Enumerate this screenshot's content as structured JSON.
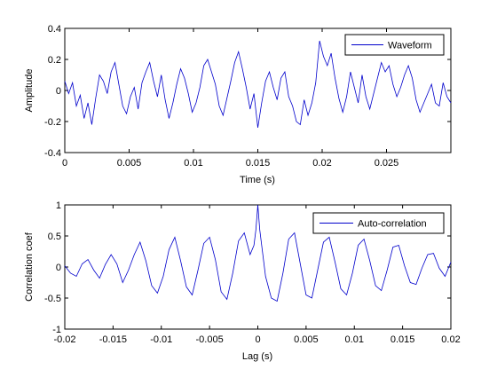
{
  "colors": {
    "line": "#0000cc",
    "axis": "#000000",
    "background": "#ffffff"
  },
  "chart_data": [
    {
      "type": "line",
      "xlabel": "Time (s)",
      "ylabel": "Amplitude",
      "xlim": [
        0,
        0.03
      ],
      "ylim": [
        -0.4,
        0.4
      ],
      "xticks": [
        0,
        0.005,
        0.01,
        0.015,
        0.02,
        0.025
      ],
      "xtick_labels": [
        "0",
        "0.005",
        "0.01",
        "0.015",
        "0.02",
        "0.025"
      ],
      "yticks": [
        -0.4,
        -0.2,
        0,
        0.2,
        0.4
      ],
      "ytick_labels": [
        "-0.4",
        "-0.2",
        "0",
        "0.2",
        "0.4"
      ],
      "grid": false,
      "legend_position": "top-right",
      "series": [
        {
          "name": "Waveform",
          "x": [
            0,
            0.0003,
            0.0006,
            0.0009,
            0.0012,
            0.0015,
            0.0018,
            0.0021,
            0.0024,
            0.0027,
            0.003,
            0.0033,
            0.0036,
            0.0039,
            0.0042,
            0.0045,
            0.0048,
            0.0051,
            0.0054,
            0.0057,
            0.006,
            0.0063,
            0.0066,
            0.0069,
            0.0072,
            0.0075,
            0.0078,
            0.0081,
            0.0084,
            0.0087,
            0.009,
            0.0093,
            0.0096,
            0.0099,
            0.0102,
            0.0105,
            0.0108,
            0.0111,
            0.0114,
            0.0117,
            0.012,
            0.0123,
            0.0126,
            0.0129,
            0.0132,
            0.0135,
            0.0138,
            0.0141,
            0.0144,
            0.0147,
            0.015,
            0.0153,
            0.0156,
            0.0159,
            0.0162,
            0.0165,
            0.0168,
            0.0171,
            0.0174,
            0.0177,
            0.018,
            0.0183,
            0.0186,
            0.0189,
            0.0192,
            0.0195,
            0.0198,
            0.0201,
            0.0204,
            0.0207,
            0.021,
            0.0213,
            0.0216,
            0.0219,
            0.0222,
            0.0225,
            0.0228,
            0.0231,
            0.0234,
            0.0237,
            0.024,
            0.0243,
            0.0246,
            0.0249,
            0.0252,
            0.0255,
            0.0258,
            0.0261,
            0.0264,
            0.0267,
            0.027,
            0.0273,
            0.0276,
            0.0279,
            0.0282,
            0.0285,
            0.0288,
            0.0291,
            0.0294,
            0.0297,
            0.03
          ],
          "y": [
            0.06,
            -0.02,
            0.05,
            -0.1,
            -0.03,
            -0.18,
            -0.08,
            -0.22,
            -0.05,
            0.1,
            0.06,
            -0.02,
            0.12,
            0.18,
            0.04,
            -0.1,
            -0.15,
            -0.04,
            0.02,
            -0.12,
            0.05,
            0.12,
            0.18,
            0.06,
            -0.04,
            0.1,
            -0.06,
            -0.18,
            -0.08,
            0.04,
            0.14,
            0.08,
            -0.02,
            -0.14,
            -0.08,
            0.02,
            0.16,
            0.2,
            0.12,
            0.04,
            -0.1,
            -0.16,
            -0.05,
            0.06,
            0.18,
            0.25,
            0.14,
            0.02,
            -0.12,
            -0.02,
            -0.24,
            -0.08,
            0.06,
            0.12,
            0.02,
            -0.06,
            0.08,
            0.12,
            -0.04,
            -0.1,
            -0.2,
            -0.22,
            -0.06,
            -0.16,
            -0.08,
            0.05,
            0.32,
            0.22,
            0.16,
            0.24,
            0.08,
            -0.05,
            -0.14,
            -0.04,
            0.12,
            0.02,
            -0.08,
            0.1,
            -0.04,
            -0.12,
            -0.02,
            0.08,
            0.18,
            0.12,
            0.16,
            0.04,
            -0.04,
            0.02,
            0.1,
            0.16,
            0.08,
            -0.06,
            -0.14,
            -0.08,
            -0.02,
            0.04,
            -0.08,
            -0.1,
            0.05,
            -0.04,
            -0.08
          ]
        }
      ]
    },
    {
      "type": "line",
      "xlabel": "Lag (s)",
      "ylabel": "Correlation coef",
      "xlim": [
        -0.02,
        0.02
      ],
      "ylim": [
        -1,
        1
      ],
      "xticks": [
        -0.02,
        -0.015,
        -0.01,
        -0.005,
        0,
        0.005,
        0.01,
        0.015,
        0.02
      ],
      "xtick_labels": [
        "-0.02",
        "-0.015",
        "-0.01",
        "-0.005",
        "0",
        "0.005",
        "0.01",
        "0.015",
        "0.02"
      ],
      "yticks": [
        -1,
        -0.5,
        0,
        0.5,
        1
      ],
      "ytick_labels": [
        "-1",
        "-0.5",
        "0",
        "0.5",
        "1"
      ],
      "grid": false,
      "legend_position": "top-right",
      "series": [
        {
          "name": "Auto-correlation",
          "x": [
            -0.02,
            -0.0194,
            -0.0188,
            -0.0182,
            -0.0176,
            -0.017,
            -0.0164,
            -0.0158,
            -0.0152,
            -0.0146,
            -0.014,
            -0.0134,
            -0.0128,
            -0.0122,
            -0.0116,
            -0.011,
            -0.0104,
            -0.0098,
            -0.0092,
            -0.0086,
            -0.008,
            -0.0074,
            -0.0068,
            -0.0062,
            -0.0056,
            -0.005,
            -0.0044,
            -0.0038,
            -0.0032,
            -0.0026,
            -0.002,
            -0.0014,
            -0.0008,
            -0.0004,
            -0.0002,
            0,
            0.0002,
            0.0004,
            0.0008,
            0.0014,
            0.002,
            0.0026,
            0.0032,
            0.0038,
            0.0044,
            0.005,
            0.0056,
            0.0062,
            0.0068,
            0.0074,
            0.008,
            0.0086,
            0.0092,
            0.0098,
            0.0104,
            0.011,
            0.0116,
            0.0122,
            0.0128,
            0.0134,
            0.014,
            0.0146,
            0.0152,
            0.0158,
            0.0164,
            0.017,
            0.0176,
            0.0182,
            0.0188,
            0.0194,
            0.02
          ],
          "y": [
            0.02,
            -0.1,
            -0.15,
            0.05,
            0.12,
            -0.05,
            -0.18,
            0.04,
            0.2,
            0.05,
            -0.25,
            -0.05,
            0.2,
            0.4,
            0.1,
            -0.3,
            -0.42,
            -0.15,
            0.28,
            0.48,
            0.1,
            -0.32,
            -0.45,
            -0.05,
            0.38,
            0.48,
            0.12,
            -0.4,
            -0.52,
            -0.1,
            0.42,
            0.55,
            0.2,
            0.35,
            0.6,
            1.0,
            0.6,
            0.35,
            -0.15,
            -0.5,
            -0.55,
            -0.1,
            0.45,
            0.55,
            0.05,
            -0.45,
            -0.5,
            -0.05,
            0.4,
            0.48,
            0.08,
            -0.35,
            -0.45,
            -0.1,
            0.35,
            0.45,
            0.1,
            -0.3,
            -0.38,
            -0.05,
            0.32,
            0.35,
            0.02,
            -0.25,
            -0.28,
            -0.02,
            0.2,
            0.22,
            -0.02,
            -0.15,
            0.08
          ]
        }
      ]
    }
  ]
}
